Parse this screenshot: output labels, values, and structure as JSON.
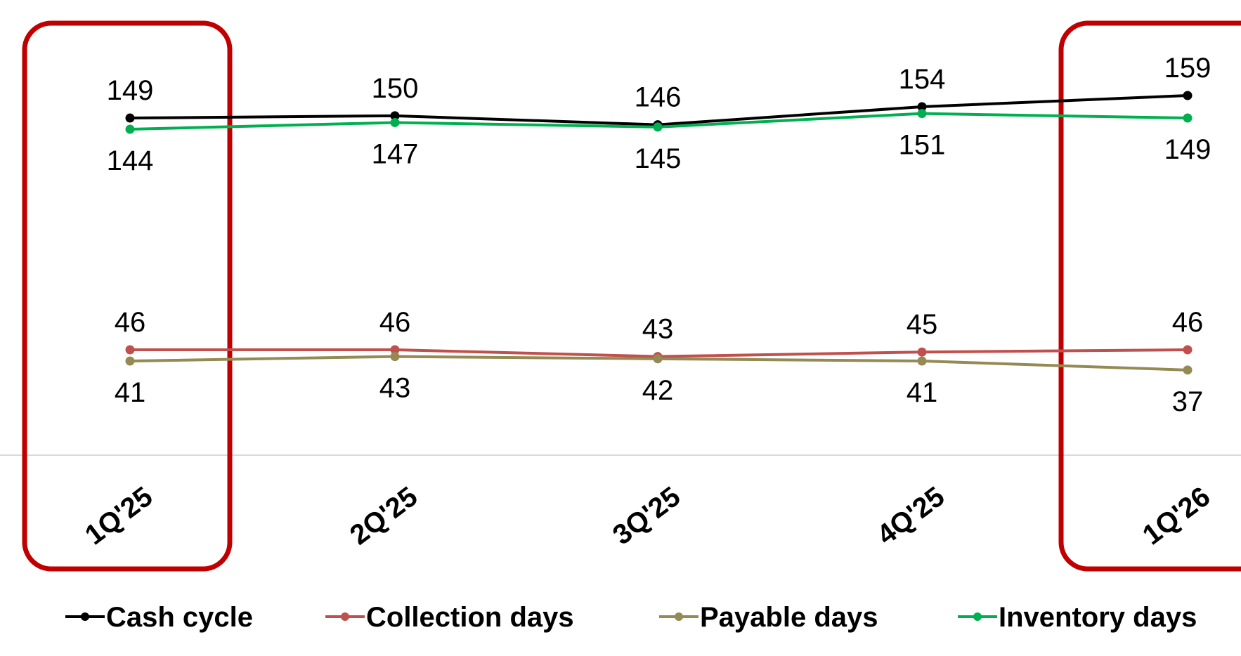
{
  "chart_data": {
    "type": "line",
    "categories": [
      "1Q'25",
      "2Q'25",
      "3Q'25",
      "4Q'25",
      "1Q'26"
    ],
    "series": [
      {
        "name": "Cash cycle",
        "values": [
          149,
          150,
          146,
          154,
          159
        ],
        "color": "#000000",
        "label_position": "above"
      },
      {
        "name": "Collection days",
        "values": [
          46,
          46,
          43,
          45,
          46
        ],
        "color": "#C0504D",
        "label_position": "above"
      },
      {
        "name": "Payable days",
        "values": [
          41,
          43,
          42,
          41,
          37
        ],
        "color": "#948A54",
        "label_position": "below"
      },
      {
        "name": "Inventory days",
        "values": [
          144,
          147,
          145,
          151,
          149
        ],
        "color": "#00B050",
        "label_position": "below"
      }
    ],
    "highlighted_categories": [
      "1Q'25",
      "1Q'26"
    ],
    "highlight_color": "#C00000",
    "legend_position": "bottom",
    "title": "",
    "xlabel": "",
    "ylabel": "",
    "grid": false
  }
}
